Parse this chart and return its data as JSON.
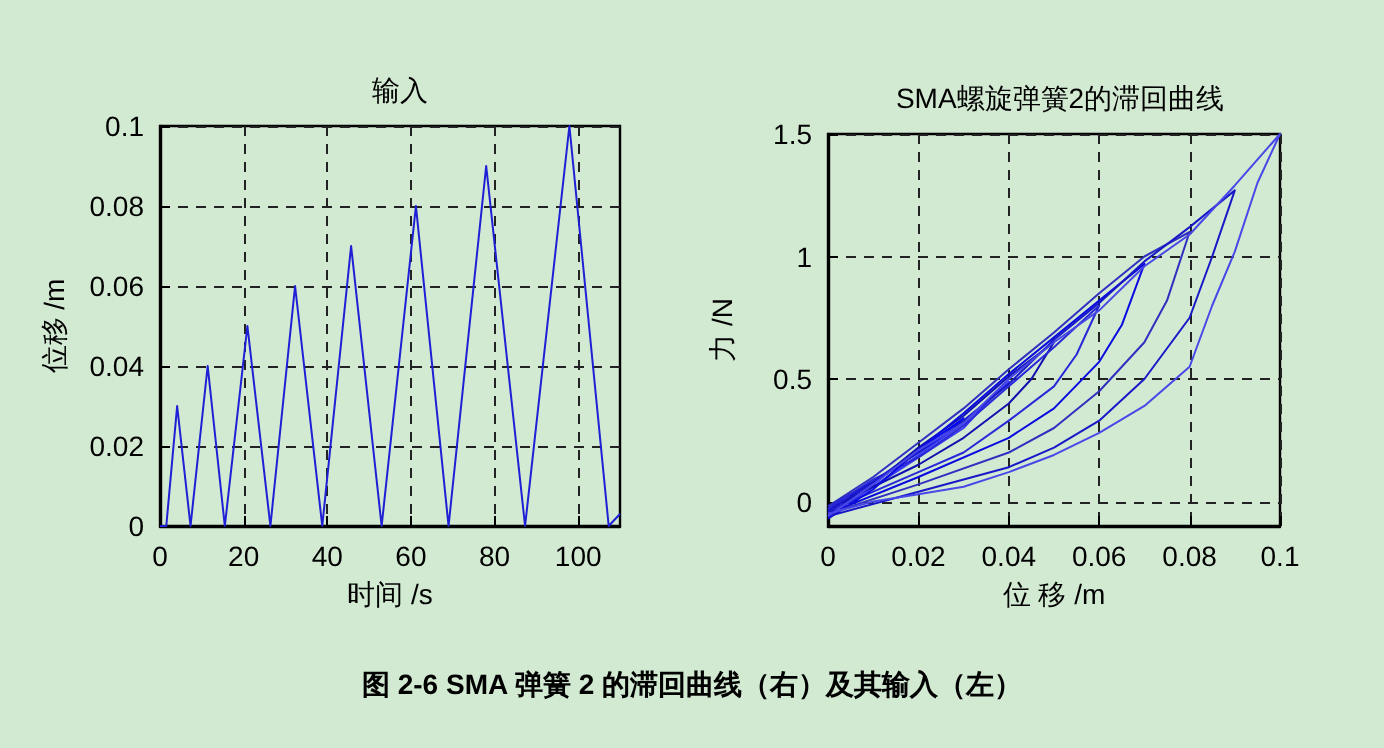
{
  "chart_data": [
    {
      "type": "line",
      "title": "输入",
      "xlabel": "时间 /s",
      "ylabel": "位移 /m",
      "xlim": [
        0,
        110
      ],
      "xticks": [
        0,
        20,
        40,
        60,
        80,
        100
      ],
      "ylim": [
        0,
        0.1
      ],
      "yticks": [
        0,
        0.02,
        0.04,
        0.06,
        0.08,
        0.1
      ],
      "grid": true,
      "marker": "none",
      "line_style": "solid",
      "x": [
        0,
        1.5,
        4.1,
        7.3,
        11.4,
        15.5,
        20.9,
        26.4,
        32.3,
        38.8,
        45.7,
        53,
        61.2,
        69,
        78,
        87.3,
        97.9,
        107.3,
        110
      ],
      "series": [
        {
          "color": "#1f1fd6",
          "values": [
            0,
            0,
            0.03,
            0,
            0.04,
            0,
            0.05,
            0,
            0.06,
            0,
            0.07,
            0,
            0.08,
            0,
            0.09,
            0,
            0.1,
            0,
            0.003
          ]
        }
      ],
      "annotations": [
        "图 2-6 SMA 弹簧 2 的滞回曲线（右）及其输入（左）"
      ]
    },
    {
      "type": "line",
      "title": "SMA螺旋弹簧2的滞回曲线",
      "xlabel": "位 移 /m",
      "ylabel": "力 /N",
      "xlim": [
        0,
        0.1
      ],
      "xticks": [
        0,
        0.02,
        0.04,
        0.06,
        0.08,
        0.1
      ],
      "ylim": [
        -0.1,
        1.5
      ],
      "yticks": [
        0,
        0.5,
        1,
        1.5
      ],
      "grid": true,
      "marker": "none",
      "line_style": "solid",
      "series": [
        {
          "color": "#0000ff",
          "x": [
            0,
            0.01,
            0.02,
            0.03,
            0.025,
            0.02,
            0.01,
            0
          ],
          "values": [
            -0.04,
            0.08,
            0.21,
            0.34,
            0.26,
            0.2,
            0.08,
            -0.02
          ]
        },
        {
          "color": "#3a3af0",
          "x": [
            0,
            0.01,
            0.02,
            0.03,
            0.04,
            0.035,
            0.03,
            0.02,
            0.01,
            0
          ],
          "values": [
            -0.06,
            0.06,
            0.19,
            0.32,
            0.49,
            0.4,
            0.3,
            0.18,
            0.06,
            -0.03
          ]
        },
        {
          "color": "#1010b0",
          "x": [
            0,
            0.01,
            0.02,
            0.03,
            0.04,
            0.05,
            0.045,
            0.04,
            0.03,
            0.02,
            0
          ],
          "values": [
            -0.05,
            0.07,
            0.22,
            0.35,
            0.51,
            0.65,
            0.5,
            0.4,
            0.26,
            0.15,
            -0.03
          ]
        },
        {
          "color": "#2828d8",
          "x": [
            0,
            0.01,
            0.02,
            0.03,
            0.04,
            0.05,
            0.06,
            0.055,
            0.05,
            0.04,
            0.03,
            0.02,
            0
          ],
          "values": [
            -0.03,
            0.09,
            0.18,
            0.31,
            0.47,
            0.63,
            0.8,
            0.6,
            0.47,
            0.33,
            0.2,
            0.12,
            -0.04
          ]
        },
        {
          "color": "#0a0ae0",
          "x": [
            0,
            0.01,
            0.02,
            0.03,
            0.04,
            0.05,
            0.06,
            0.07,
            0.065,
            0.06,
            0.05,
            0.04,
            0.02,
            0
          ],
          "values": [
            -0.07,
            0.05,
            0.21,
            0.36,
            0.52,
            0.67,
            0.82,
            0.97,
            0.72,
            0.57,
            0.38,
            0.26,
            0.1,
            -0.05
          ]
        },
        {
          "color": "#3030c0",
          "x": [
            0,
            0.01,
            0.02,
            0.03,
            0.04,
            0.05,
            0.06,
            0.07,
            0.08,
            0.075,
            0.07,
            0.06,
            0.05,
            0.04,
            0.02,
            0
          ],
          "values": [
            -0.02,
            0.1,
            0.24,
            0.38,
            0.54,
            0.69,
            0.85,
            1.0,
            1.1,
            0.82,
            0.65,
            0.45,
            0.3,
            0.2,
            0.07,
            -0.05
          ]
        },
        {
          "color": "#1818c8",
          "x": [
            0,
            0.01,
            0.02,
            0.03,
            0.04,
            0.05,
            0.06,
            0.07,
            0.08,
            0.09,
            0.085,
            0.08,
            0.07,
            0.06,
            0.05,
            0.04,
            0.02,
            0
          ],
          "values": [
            -0.04,
            0.08,
            0.2,
            0.33,
            0.48,
            0.66,
            0.81,
            0.98,
            1.12,
            1.27,
            1.0,
            0.75,
            0.5,
            0.33,
            0.22,
            0.14,
            0.04,
            -0.06
          ]
        },
        {
          "color": "#4848e8",
          "x": [
            0,
            0.01,
            0.02,
            0.03,
            0.04,
            0.05,
            0.06,
            0.07,
            0.08,
            0.09,
            0.1,
            0.095,
            0.09,
            0.085,
            0.08,
            0.07,
            0.06,
            0.05,
            0.04,
            0.03,
            0.02,
            0.01,
            0
          ],
          "values": [
            -0.06,
            0.07,
            0.21,
            0.32,
            0.5,
            0.65,
            0.78,
            0.96,
            1.09,
            1.29,
            1.5,
            1.3,
            1.02,
            0.8,
            0.55,
            0.39,
            0.28,
            0.19,
            0.12,
            0.06,
            0.03,
            0,
            -0.05
          ]
        }
      ]
    }
  ]
}
